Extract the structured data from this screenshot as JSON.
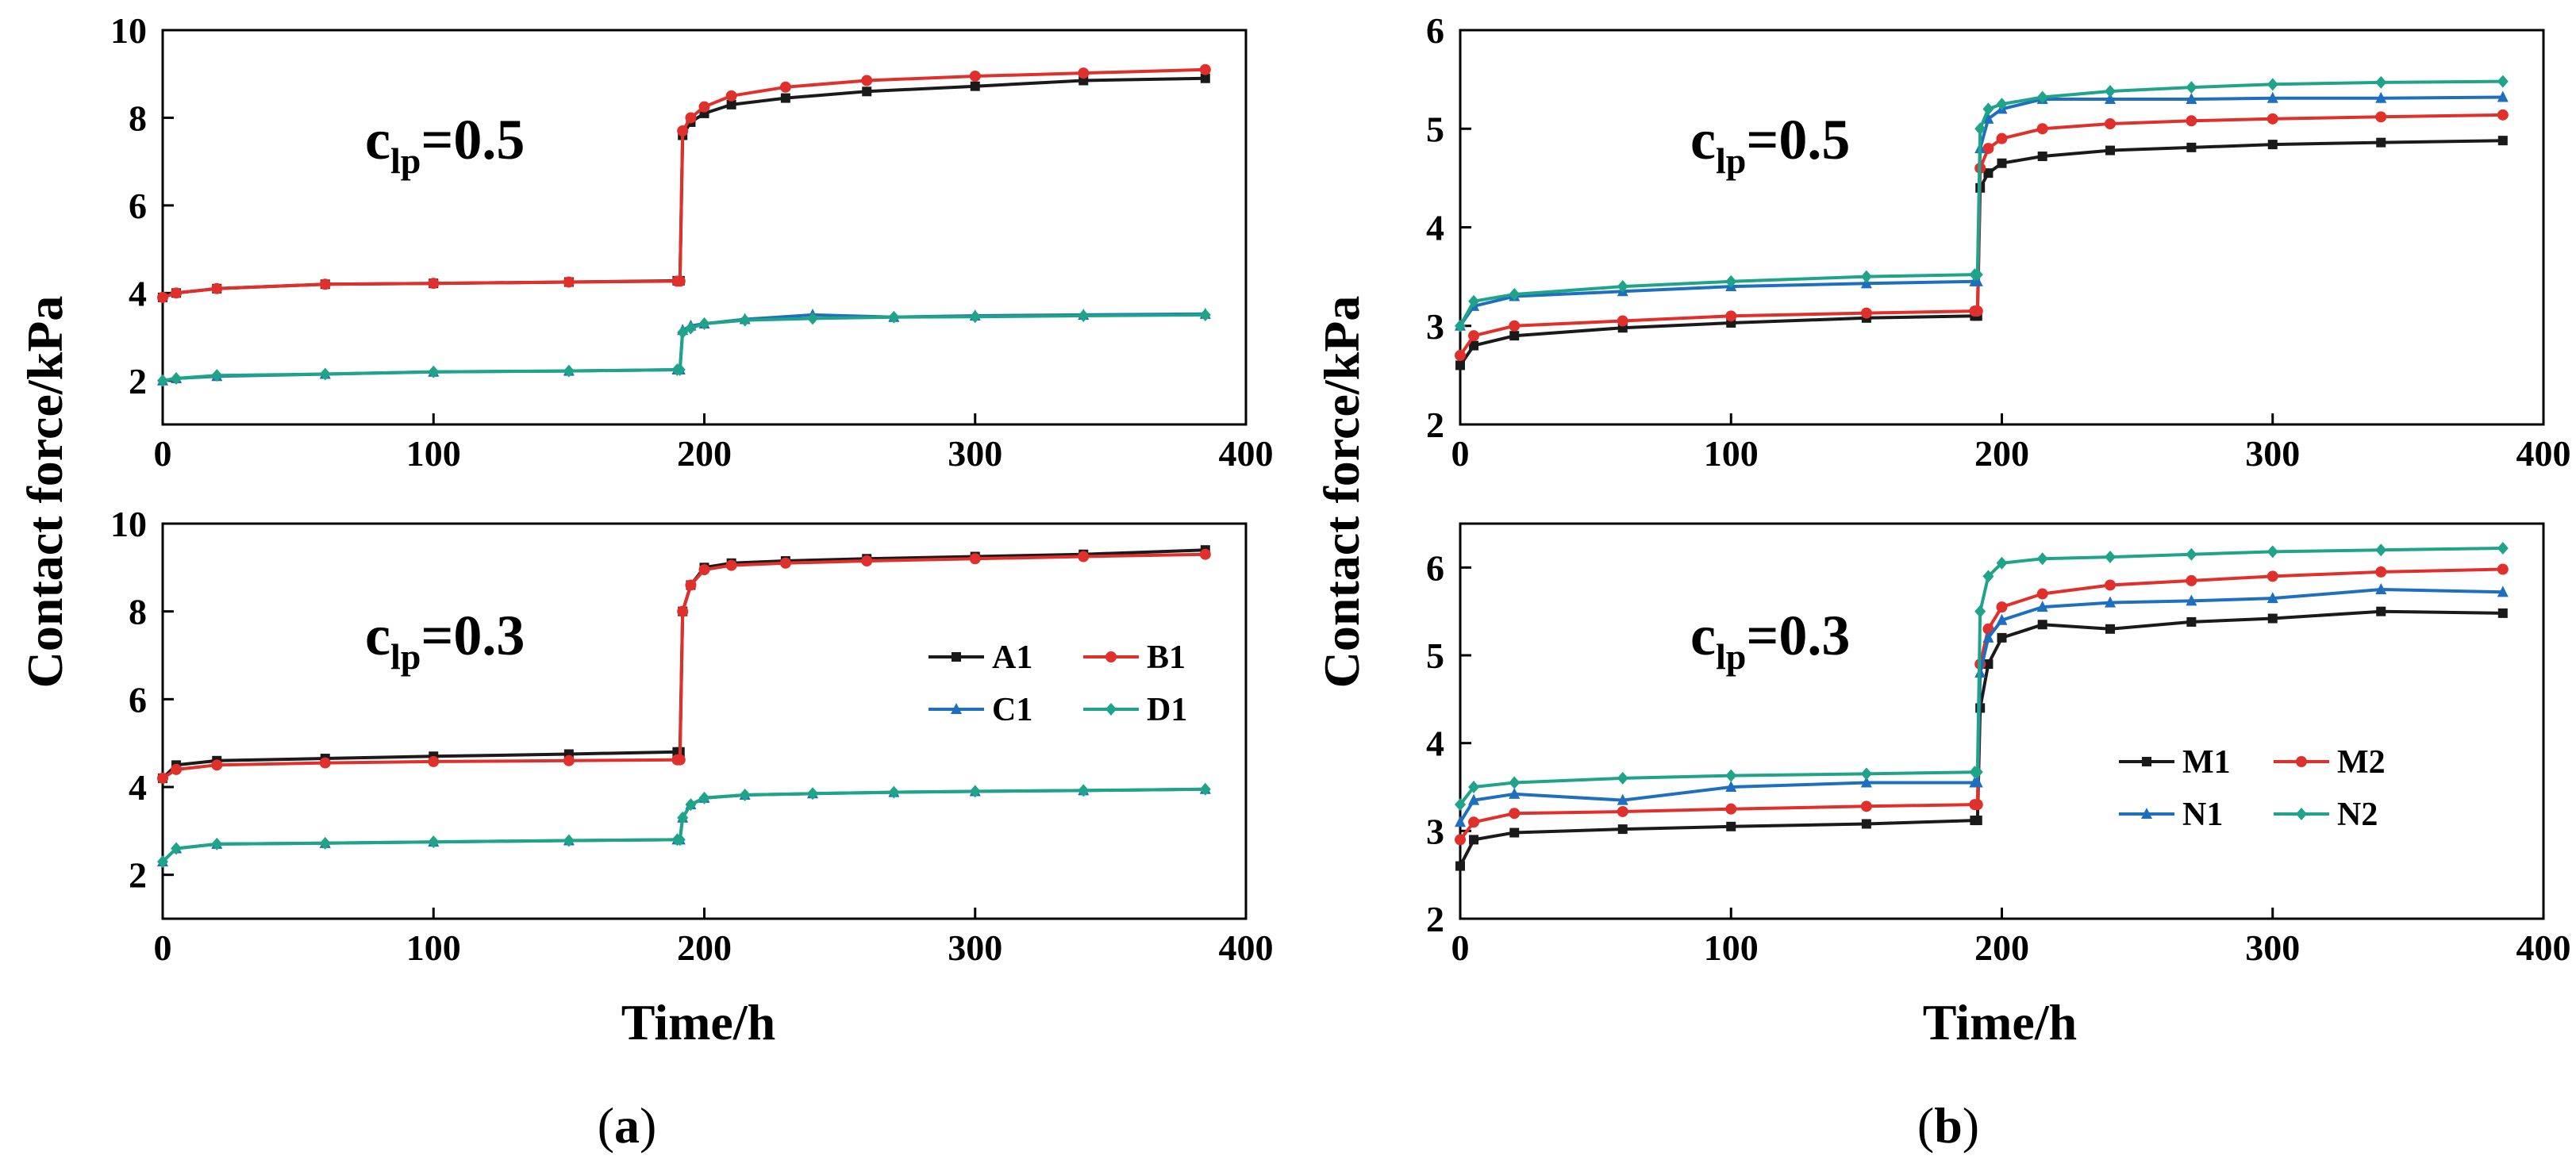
{
  "figure": {
    "ylabel": "Contact force/kPa",
    "xlabel": "Time/h",
    "captions": [
      {
        "open": "(",
        "letter": "a",
        "close": ")"
      },
      {
        "open": "(",
        "letter": "b",
        "close": ")"
      }
    ]
  },
  "chart_data": [
    {
      "type": "line",
      "panel": "a",
      "annotation": {
        "base": "c",
        "sub": "lp",
        "text": "=0.5"
      },
      "xlabel": "",
      "ylabel": "",
      "xlim": [
        0,
        400
      ],
      "ylim": [
        1,
        10
      ],
      "xticks": [
        0,
        100,
        200,
        300,
        400
      ],
      "yticks": [
        2,
        4,
        6,
        8,
        10
      ],
      "legend": "none",
      "series": [
        {
          "name": "A1",
          "color": "#1a1a1a",
          "marker": "square",
          "x": [
            0,
            5,
            20,
            60,
            100,
            150,
            190,
            191,
            192,
            195,
            200,
            210,
            230,
            260,
            300,
            340,
            385
          ],
          "y": [
            3.9,
            4.0,
            4.1,
            4.2,
            4.22,
            4.25,
            4.28,
            4.28,
            7.6,
            7.9,
            8.1,
            8.3,
            8.45,
            8.6,
            8.72,
            8.85,
            8.9
          ]
        },
        {
          "name": "B1",
          "color": "#e0302c",
          "marker": "circle",
          "x": [
            0,
            5,
            20,
            60,
            100,
            150,
            190,
            191,
            192,
            195,
            200,
            210,
            230,
            260,
            300,
            340,
            385
          ],
          "y": [
            3.9,
            4.0,
            4.1,
            4.2,
            4.22,
            4.25,
            4.27,
            4.27,
            7.7,
            8.0,
            8.25,
            8.5,
            8.7,
            8.85,
            8.95,
            9.02,
            9.1
          ]
        },
        {
          "name": "C1",
          "color": "#1f6fbf",
          "marker": "triangle",
          "x": [
            0,
            5,
            20,
            60,
            100,
            150,
            190,
            191,
            192,
            195,
            200,
            215,
            240,
            270,
            300,
            340,
            385
          ],
          "y": [
            2.0,
            2.05,
            2.1,
            2.15,
            2.2,
            2.22,
            2.25,
            2.25,
            3.15,
            3.25,
            3.3,
            3.4,
            3.5,
            3.45,
            3.48,
            3.5,
            3.52
          ]
        },
        {
          "name": "D1",
          "color": "#1fa48a",
          "marker": "diamond",
          "x": [
            0,
            5,
            20,
            60,
            100,
            150,
            190,
            191,
            192,
            195,
            200,
            215,
            240,
            270,
            300,
            340,
            385
          ],
          "y": [
            2.0,
            2.05,
            2.12,
            2.15,
            2.2,
            2.22,
            2.25,
            2.25,
            3.1,
            3.2,
            3.3,
            3.38,
            3.42,
            3.45,
            3.46,
            3.48,
            3.5
          ]
        }
      ]
    },
    {
      "type": "line",
      "panel": "a",
      "annotation": {
        "base": "c",
        "sub": "lp",
        "text": "=0.3"
      },
      "xlabel": "",
      "ylabel": "",
      "xlim": [
        0,
        400
      ],
      "ylim": [
        1,
        10
      ],
      "xticks": [
        0,
        100,
        200,
        300,
        400
      ],
      "yticks": [
        2,
        4,
        6,
        8,
        10
      ],
      "legend": "right",
      "series": [
        {
          "name": "A1",
          "color": "#1a1a1a",
          "marker": "square",
          "x": [
            0,
            5,
            20,
            60,
            100,
            150,
            190,
            191,
            192,
            195,
            200,
            210,
            230,
            260,
            300,
            340,
            385
          ],
          "y": [
            4.2,
            4.5,
            4.6,
            4.65,
            4.7,
            4.75,
            4.8,
            4.8,
            8.0,
            8.6,
            9.0,
            9.1,
            9.15,
            9.2,
            9.25,
            9.3,
            9.4
          ]
        },
        {
          "name": "B1",
          "color": "#e0302c",
          "marker": "circle",
          "x": [
            0,
            5,
            20,
            60,
            100,
            150,
            190,
            191,
            192,
            195,
            200,
            210,
            230,
            260,
            300,
            340,
            385
          ],
          "y": [
            4.2,
            4.4,
            4.5,
            4.55,
            4.58,
            4.6,
            4.62,
            4.62,
            8.0,
            8.6,
            8.95,
            9.05,
            9.1,
            9.15,
            9.2,
            9.25,
            9.3
          ]
        },
        {
          "name": "C1",
          "color": "#1f6fbf",
          "marker": "triangle",
          "x": [
            0,
            5,
            20,
            60,
            100,
            150,
            190,
            191,
            192,
            195,
            200,
            215,
            240,
            270,
            300,
            340,
            385
          ],
          "y": [
            2.3,
            2.6,
            2.7,
            2.72,
            2.75,
            2.78,
            2.8,
            2.8,
            3.3,
            3.6,
            3.75,
            3.82,
            3.85,
            3.88,
            3.9,
            3.92,
            3.95
          ]
        },
        {
          "name": "D1",
          "color": "#1fa48a",
          "marker": "diamond",
          "x": [
            0,
            5,
            20,
            60,
            100,
            150,
            190,
            191,
            192,
            195,
            200,
            215,
            240,
            270,
            300,
            340,
            385
          ],
          "y": [
            2.3,
            2.6,
            2.7,
            2.72,
            2.75,
            2.78,
            2.8,
            2.8,
            3.3,
            3.6,
            3.75,
            3.82,
            3.85,
            3.88,
            3.9,
            3.92,
            3.95
          ]
        }
      ]
    },
    {
      "type": "line",
      "panel": "b",
      "annotation": {
        "base": "c",
        "sub": "lp",
        "text": "=0.5"
      },
      "xlabel": "",
      "ylabel": "",
      "xlim": [
        0,
        400
      ],
      "ylim": [
        2,
        6
      ],
      "xticks": [
        0,
        100,
        200,
        300,
        400
      ],
      "yticks": [
        2,
        3,
        4,
        5,
        6
      ],
      "legend": "none",
      "series": [
        {
          "name": "M1",
          "color": "#1a1a1a",
          "marker": "square",
          "x": [
            0,
            5,
            20,
            60,
            100,
            150,
            190,
            191,
            192,
            195,
            200,
            215,
            240,
            270,
            300,
            340,
            385
          ],
          "y": [
            2.6,
            2.8,
            2.9,
            2.98,
            3.03,
            3.08,
            3.1,
            3.1,
            4.4,
            4.55,
            4.65,
            4.72,
            4.78,
            4.81,
            4.84,
            4.86,
            4.88
          ]
        },
        {
          "name": "M2",
          "color": "#e0302c",
          "marker": "circle",
          "x": [
            0,
            5,
            20,
            60,
            100,
            150,
            190,
            191,
            192,
            195,
            200,
            215,
            240,
            270,
            300,
            340,
            385
          ],
          "y": [
            2.7,
            2.9,
            3.0,
            3.05,
            3.1,
            3.13,
            3.15,
            3.15,
            4.6,
            4.8,
            4.9,
            5.0,
            5.05,
            5.08,
            5.1,
            5.12,
            5.14
          ]
        },
        {
          "name": "N1",
          "color": "#1f6fbf",
          "marker": "triangle",
          "x": [
            0,
            5,
            20,
            60,
            100,
            150,
            190,
            191,
            192,
            195,
            200,
            215,
            240,
            270,
            300,
            340,
            385
          ],
          "y": [
            3.0,
            3.2,
            3.3,
            3.35,
            3.4,
            3.43,
            3.45,
            3.45,
            4.8,
            5.1,
            5.2,
            5.3,
            5.3,
            5.3,
            5.31,
            5.31,
            5.32
          ]
        },
        {
          "name": "N2",
          "color": "#1fa48a",
          "marker": "diamond",
          "x": [
            0,
            5,
            20,
            60,
            100,
            150,
            190,
            191,
            192,
            195,
            200,
            215,
            240,
            270,
            300,
            340,
            385
          ],
          "y": [
            3.0,
            3.25,
            3.32,
            3.4,
            3.45,
            3.5,
            3.52,
            3.52,
            5.0,
            5.2,
            5.25,
            5.32,
            5.38,
            5.42,
            5.45,
            5.47,
            5.48
          ]
        }
      ]
    },
    {
      "type": "line",
      "panel": "b",
      "annotation": {
        "base": "c",
        "sub": "lp",
        "text": "=0.3"
      },
      "xlabel": "",
      "ylabel": "",
      "xlim": [
        0,
        400
      ],
      "ylim": [
        2,
        6.5
      ],
      "xticks": [
        0,
        100,
        200,
        300,
        400
      ],
      "yticks": [
        2,
        3,
        4,
        5,
        6
      ],
      "legend": "right",
      "series": [
        {
          "name": "M1",
          "color": "#1a1a1a",
          "marker": "square",
          "x": [
            0,
            5,
            20,
            60,
            100,
            150,
            190,
            191,
            192,
            195,
            200,
            215,
            240,
            270,
            300,
            340,
            385
          ],
          "y": [
            2.6,
            2.9,
            2.98,
            3.02,
            3.05,
            3.08,
            3.12,
            3.12,
            4.4,
            4.9,
            5.2,
            5.35,
            5.3,
            5.38,
            5.42,
            5.5,
            5.48
          ]
        },
        {
          "name": "M2",
          "color": "#e0302c",
          "marker": "circle",
          "x": [
            0,
            5,
            20,
            60,
            100,
            150,
            190,
            191,
            192,
            195,
            200,
            215,
            240,
            270,
            300,
            340,
            385
          ],
          "y": [
            2.9,
            3.1,
            3.2,
            3.22,
            3.25,
            3.28,
            3.3,
            3.3,
            4.9,
            5.3,
            5.55,
            5.7,
            5.8,
            5.85,
            5.9,
            5.95,
            5.98
          ]
        },
        {
          "name": "N1",
          "color": "#1f6fbf",
          "marker": "triangle",
          "x": [
            0,
            5,
            20,
            60,
            100,
            150,
            190,
            191,
            192,
            195,
            200,
            215,
            240,
            270,
            300,
            340,
            385
          ],
          "y": [
            3.1,
            3.35,
            3.42,
            3.35,
            3.5,
            3.55,
            3.55,
            3.55,
            4.8,
            5.2,
            5.4,
            5.55,
            5.6,
            5.62,
            5.65,
            5.75,
            5.72
          ]
        },
        {
          "name": "N2",
          "color": "#1fa48a",
          "marker": "diamond",
          "x": [
            0,
            5,
            20,
            60,
            100,
            150,
            190,
            191,
            192,
            195,
            200,
            215,
            240,
            270,
            300,
            340,
            385
          ],
          "y": [
            3.3,
            3.5,
            3.55,
            3.6,
            3.63,
            3.65,
            3.67,
            3.67,
            5.5,
            5.9,
            6.05,
            6.1,
            6.12,
            6.15,
            6.18,
            6.2,
            6.22
          ]
        }
      ]
    }
  ]
}
